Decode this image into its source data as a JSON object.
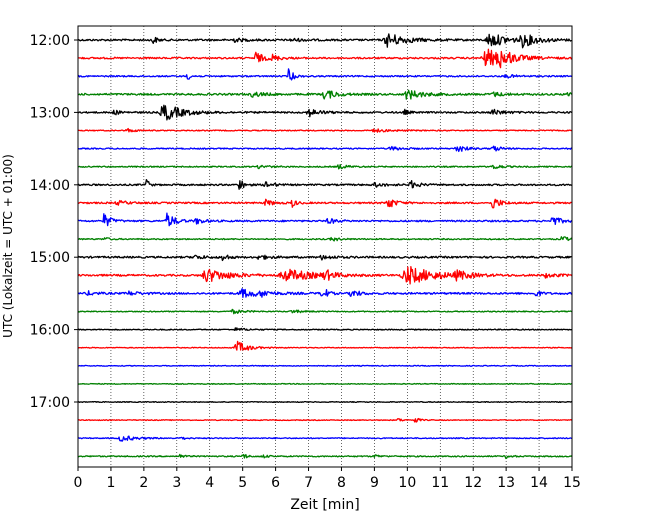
{
  "chart_data": {
    "type": "line",
    "chart_kind": "helicorder",
    "xlabel": "Zeit  [min]",
    "ylabel": "UTC (Lokalzeit = UTC + 01:00)",
    "xlim": [
      0,
      15
    ],
    "x_ticks": [
      "0",
      "1",
      "2",
      "3",
      "4",
      "5",
      "6",
      "7",
      "8",
      "9",
      "10",
      "11",
      "12",
      "13",
      "14",
      "15"
    ],
    "x_tick_values": [
      0,
      1,
      2,
      3,
      4,
      5,
      6,
      7,
      8,
      9,
      10,
      11,
      12,
      13,
      14,
      15
    ],
    "y_tick_labels": [
      "12:00",
      "13:00",
      "14:00",
      "15:00",
      "16:00",
      "17:00"
    ],
    "y_tick_rows": [
      0,
      4,
      8,
      12,
      16,
      20
    ],
    "grid": "vertical dotted at each minute",
    "row_minutes": 15,
    "color_cycle": [
      "#000000",
      "#ff0000",
      "#0000ff",
      "#008000"
    ],
    "rows": [
      {
        "start": "12:00",
        "noise": 0.9,
        "events": [
          {
            "t": 2.25,
            "a": 5,
            "d": 0.1
          },
          {
            "t": 4.7,
            "a": 2,
            "d": 0.3
          },
          {
            "t": 6.5,
            "a": 1.5,
            "d": 0.3
          },
          {
            "t": 9.4,
            "a": 7,
            "d": 0.5
          },
          {
            "t": 12.5,
            "a": 7,
            "d": 0.5
          },
          {
            "t": 13.5,
            "a": 6,
            "d": 0.4
          }
        ]
      },
      {
        "start": "12:15",
        "noise": 0.8,
        "events": [
          {
            "t": 5.4,
            "a": 6,
            "d": 0.2
          },
          {
            "t": 5.9,
            "a": 3,
            "d": 0.2
          },
          {
            "t": 12.4,
            "a": 9,
            "d": 0.6
          },
          {
            "t": 12.8,
            "a": 6,
            "d": 0.3
          }
        ]
      },
      {
        "start": "12:30",
        "noise": 0.7,
        "events": [
          {
            "t": 3.3,
            "a": 4,
            "d": 0.1
          },
          {
            "t": 6.4,
            "a": 8,
            "d": 0.1
          },
          {
            "t": 13.0,
            "a": 1.5,
            "d": 0.3
          }
        ]
      },
      {
        "start": "12:45",
        "noise": 0.9,
        "events": [
          {
            "t": 5.3,
            "a": 2.5,
            "d": 0.3
          },
          {
            "t": 7.5,
            "a": 5,
            "d": 0.3
          },
          {
            "t": 10.0,
            "a": 5,
            "d": 0.4
          },
          {
            "t": 12.6,
            "a": 2,
            "d": 0.3
          },
          {
            "t": 14.9,
            "a": 3,
            "d": 0.2
          }
        ]
      },
      {
        "start": "13:00",
        "noise": 0.8,
        "events": [
          {
            "t": 1.1,
            "a": 2,
            "d": 0.2
          },
          {
            "t": 2.6,
            "a": 9,
            "d": 0.5
          },
          {
            "t": 7.0,
            "a": 4,
            "d": 0.3
          },
          {
            "t": 9.9,
            "a": 3,
            "d": 0.1
          },
          {
            "t": 12.6,
            "a": 3,
            "d": 0.3
          }
        ]
      },
      {
        "start": "13:15",
        "noise": 0.5,
        "events": [
          {
            "t": 1.5,
            "a": 2,
            "d": 0.2
          },
          {
            "t": 9.0,
            "a": 1.5,
            "d": 0.5
          }
        ]
      },
      {
        "start": "13:30",
        "noise": 0.6,
        "events": [
          {
            "t": 9.5,
            "a": 2,
            "d": 0.3
          },
          {
            "t": 11.5,
            "a": 5,
            "d": 0.2
          },
          {
            "t": 12.6,
            "a": 3,
            "d": 0.2
          }
        ]
      },
      {
        "start": "13:45",
        "noise": 0.6,
        "events": [
          {
            "t": 5.5,
            "a": 1.5,
            "d": 0.3
          },
          {
            "t": 7.9,
            "a": 2,
            "d": 0.3
          },
          {
            "t": 12.6,
            "a": 3,
            "d": 0.2
          }
        ]
      },
      {
        "start": "14:00",
        "noise": 0.8,
        "events": [
          {
            "t": 2.05,
            "a": 10,
            "d": 0.05
          },
          {
            "t": 4.9,
            "a": 7,
            "d": 0.1
          },
          {
            "t": 5.7,
            "a": 3,
            "d": 0.2
          },
          {
            "t": 9.0,
            "a": 2,
            "d": 0.3
          },
          {
            "t": 10.1,
            "a": 4,
            "d": 0.2
          }
        ]
      },
      {
        "start": "14:15",
        "noise": 0.8,
        "events": [
          {
            "t": 1.2,
            "a": 2,
            "d": 0.3
          },
          {
            "t": 5.7,
            "a": 3,
            "d": 0.2
          },
          {
            "t": 6.5,
            "a": 4,
            "d": 0.1
          },
          {
            "t": 9.4,
            "a": 6,
            "d": 0.2
          },
          {
            "t": 12.6,
            "a": 6,
            "d": 0.2
          }
        ]
      },
      {
        "start": "14:30",
        "noise": 0.8,
        "events": [
          {
            "t": 0.8,
            "a": 8,
            "d": 0.15
          },
          {
            "t": 2.7,
            "a": 8,
            "d": 0.2
          },
          {
            "t": 3.6,
            "a": 3,
            "d": 0.2
          },
          {
            "t": 7.6,
            "a": 3,
            "d": 0.2
          },
          {
            "t": 14.4,
            "a": 5,
            "d": 0.2
          }
        ]
      },
      {
        "start": "14:45",
        "noise": 0.6,
        "events": [
          {
            "t": 0.8,
            "a": 2,
            "d": 0.1
          },
          {
            "t": 7.7,
            "a": 2,
            "d": 0.2
          },
          {
            "t": 14.7,
            "a": 4,
            "d": 0.1
          }
        ]
      },
      {
        "start": "15:00",
        "noise": 0.9,
        "events": [
          {
            "t": 3.5,
            "a": 2,
            "d": 0.3
          },
          {
            "t": 4.4,
            "a": 5,
            "d": 0.1
          },
          {
            "t": 5.5,
            "a": 2,
            "d": 0.3
          },
          {
            "t": 7.4,
            "a": 2,
            "d": 0.3
          }
        ]
      },
      {
        "start": "15:15",
        "noise": 0.9,
        "events": [
          {
            "t": 3.9,
            "a": 7,
            "d": 0.6
          },
          {
            "t": 6.3,
            "a": 6,
            "d": 0.8
          },
          {
            "t": 7.5,
            "a": 5,
            "d": 0.2
          },
          {
            "t": 10.0,
            "a": 9,
            "d": 0.8
          },
          {
            "t": 11.5,
            "a": 4,
            "d": 0.3
          },
          {
            "t": 14.2,
            "a": 2,
            "d": 0.3
          }
        ]
      },
      {
        "start": "15:30",
        "noise": 0.9,
        "events": [
          {
            "t": 0.3,
            "a": 2,
            "d": 0.2
          },
          {
            "t": 1.5,
            "a": 2,
            "d": 0.3
          },
          {
            "t": 5.0,
            "a": 4,
            "d": 0.6
          },
          {
            "t": 5.6,
            "a": 3,
            "d": 0.1
          },
          {
            "t": 7.4,
            "a": 10,
            "d": 0.1
          },
          {
            "t": 8.3,
            "a": 4,
            "d": 0.2
          },
          {
            "t": 13.9,
            "a": 4,
            "d": 0.1
          }
        ]
      },
      {
        "start": "15:45",
        "noise": 0.5,
        "events": [
          {
            "t": 4.7,
            "a": 2,
            "d": 0.3
          },
          {
            "t": 6.5,
            "a": 1.5,
            "d": 0.3
          }
        ]
      },
      {
        "start": "16:00",
        "noise": 0.5,
        "events": [
          {
            "t": 4.8,
            "a": 1.5,
            "d": 0.3
          }
        ]
      },
      {
        "start": "16:15",
        "noise": 0.4,
        "events": [
          {
            "t": 4.8,
            "a": 7,
            "d": 0.3
          }
        ]
      },
      {
        "start": "16:30",
        "noise": 0.4,
        "events": []
      },
      {
        "start": "16:45",
        "noise": 0.4,
        "events": []
      },
      {
        "start": "17:00",
        "noise": 0.4,
        "events": []
      },
      {
        "start": "17:15",
        "noise": 0.4,
        "events": [
          {
            "t": 9.7,
            "a": 2,
            "d": 0.1
          },
          {
            "t": 10.2,
            "a": 4,
            "d": 0.1
          }
        ]
      },
      {
        "start": "17:30",
        "noise": 0.5,
        "events": [
          {
            "t": 1.3,
            "a": 3,
            "d": 0.4
          },
          {
            "t": 3.1,
            "a": 2,
            "d": 0.1
          }
        ]
      },
      {
        "start": "17:45",
        "noise": 0.6,
        "events": [
          {
            "t": 3.1,
            "a": 2,
            "d": 0.1
          },
          {
            "t": 5.0,
            "a": 3,
            "d": 0.1
          },
          {
            "t": 5.6,
            "a": 2,
            "d": 0.1
          },
          {
            "t": 9.0,
            "a": 2,
            "d": 0.1
          },
          {
            "t": 13.0,
            "a": 2,
            "d": 0.1
          }
        ]
      }
    ]
  }
}
